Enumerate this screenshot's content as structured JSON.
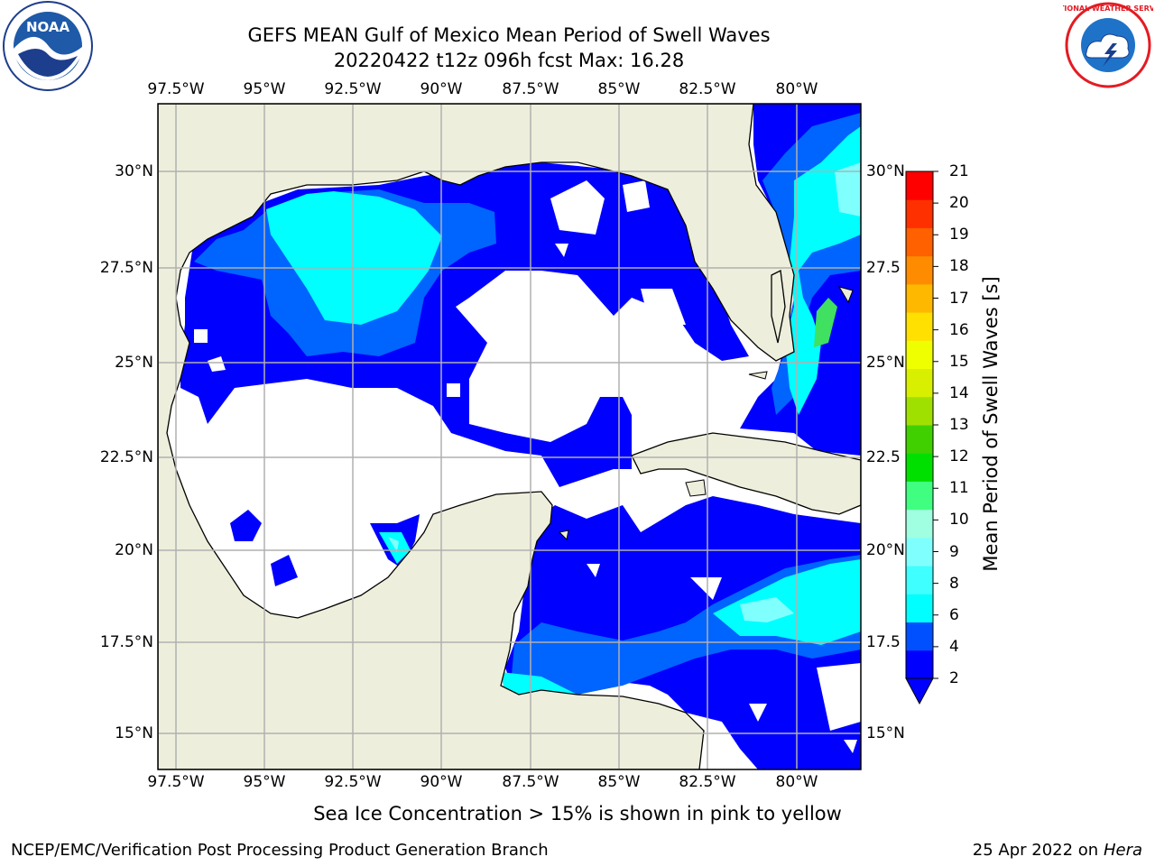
{
  "header": {
    "title": "GEFS MEAN Gulf of Mexico Mean Period of Swell Waves",
    "subtitle": "20220422 t12z 096h fcst   Max: 16.28"
  },
  "map": {
    "lon_ticks_top": [
      "97.5°W",
      "95°W",
      "92.5°W",
      "90°W",
      "87.5°W",
      "85°W",
      "82.5°W",
      "80°W"
    ],
    "lon_ticks_bottom": [
      "97.5°W",
      "95°W",
      "92.5°W",
      "90°W",
      "87.5°W",
      "85°W",
      "82.5°W",
      "80°W"
    ],
    "lat_ticks_left": [
      "30°N",
      "27.5°N",
      "25°N",
      "22.5°N",
      "20°N",
      "17.5°N",
      "15°N"
    ],
    "lat_ticks_right": [
      "30°N",
      "27.5",
      "25°N",
      "22.5",
      "20°N",
      "17.5",
      "15°N"
    ],
    "land_color": "#eeeedc",
    "grid_color": "#b0b0b0"
  },
  "colorbar": {
    "title": "Mean Period of Swell Waves [s]",
    "labels": [
      "21",
      "20",
      "19",
      "18",
      "17",
      "16",
      "15",
      "14",
      "13",
      "12",
      "11",
      "10",
      "9",
      "8",
      "6",
      "4",
      "2"
    ],
    "colors": [
      "#0000ff",
      "#0050ff",
      "#00ffff",
      "#40ffff",
      "#80ffff",
      "#a0ffe0",
      "#40ff80",
      "#00e000",
      "#40d000",
      "#a0e000",
      "#d8f000",
      "#f0ff00",
      "#ffe000",
      "#ffb800",
      "#ff8c00",
      "#ff6000",
      "#ff3000",
      "#ff0000"
    ]
  },
  "note": "Sea Ice Concentration > 15% is shown in pink to yellow",
  "footer": {
    "left": "NCEP/EMC/Verification Post Processing Product Generation Branch",
    "right_prefix": "25 Apr 2022 on ",
    "right_host": "Hera"
  },
  "logos": {
    "left": "noaa-logo",
    "right": "nws-logo",
    "left_text": "NOAA",
    "right_text": "NATIONAL WEATHER SERVICE"
  }
}
